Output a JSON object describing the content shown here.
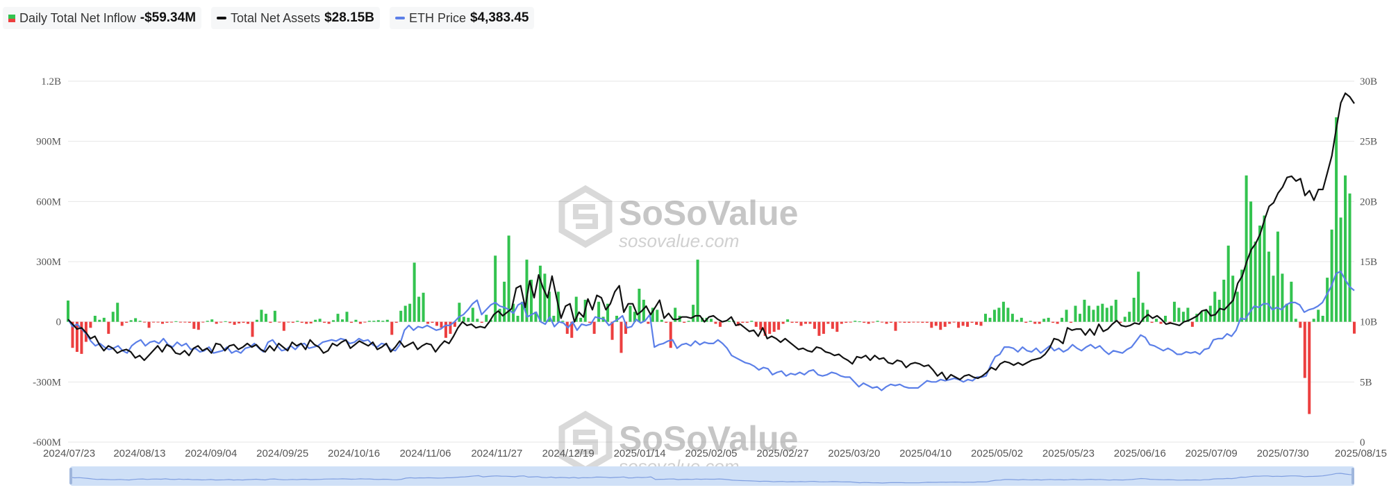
{
  "legend": {
    "inflow": {
      "label": "Daily Total Net Inflow",
      "value": "-$59.34M"
    },
    "assets": {
      "label": "Total Net Assets",
      "value": "$28.15B"
    },
    "price": {
      "label": "ETH Price",
      "value": "$4,383.45"
    }
  },
  "watermark": {
    "brand": "SoSoValue",
    "url": "sosovalue.com"
  },
  "colors": {
    "positive": "#33c34f",
    "negative": "#ec3f3f",
    "assets_line": "#111111",
    "price_line": "#5b7fe8",
    "grid": "#e6e6e6",
    "navigator": "#cfe0f7"
  },
  "chart_data": {
    "type": "bar",
    "title": "",
    "xlabel": "",
    "ylabel": "",
    "x_ticks": [
      "2024/07/23",
      "2024/08/13",
      "2024/09/04",
      "2024/09/25",
      "2024/10/16",
      "2024/11/06",
      "2024/11/27",
      "2024/12/19",
      "2025/01/14",
      "2025/02/05",
      "2025/02/27",
      "2025/03/20",
      "2025/04/10",
      "2025/05/02",
      "2025/05/23",
      "2025/06/16",
      "2025/07/09",
      "2025/07/30",
      "2025/08/15"
    ],
    "y_left_ticks": [
      "1.2B",
      "900M",
      "600M",
      "300M",
      "0",
      "-300M",
      "-600M"
    ],
    "y_right_ticks": [
      "30B",
      "25B",
      "20B",
      "15B",
      "10B",
      "5B",
      "0"
    ],
    "ylim_left": [
      -600,
      1200
    ],
    "ylim_right": [
      0,
      30
    ],
    "left_unit": "M USD",
    "right_unit": "B",
    "grid": true,
    "series": [
      {
        "name": "Daily Total Net Inflow",
        "type": "bar",
        "axis": "left",
        "values": [
          106,
          -130,
          -150,
          -160,
          -100,
          -30,
          30,
          10,
          20,
          -60,
          50,
          95,
          -20,
          -5,
          8,
          18,
          5,
          -3,
          -30,
          -2,
          -3,
          -10,
          -5,
          -3,
          3,
          -3,
          -2,
          -5,
          -35,
          -40,
          -3,
          5,
          12,
          -10,
          -3,
          3,
          -6,
          -15,
          -8,
          -5,
          -10,
          -75,
          10,
          60,
          40,
          -5,
          55,
          -3,
          -45,
          -3,
          -5,
          5,
          -5,
          -10,
          -8,
          10,
          15,
          -5,
          -10,
          8,
          40,
          12,
          50,
          -5,
          10,
          -10,
          -3,
          5,
          5,
          8,
          5,
          10,
          -65,
          -5,
          55,
          80,
          90,
          295,
          125,
          145,
          -10,
          -5,
          -20,
          -30,
          -80,
          -60,
          -25,
          95,
          25,
          20,
          70,
          15,
          -5,
          35,
          10,
          330,
          65,
          200,
          430,
          90,
          30,
          100,
          310,
          210,
          50,
          280,
          240,
          150,
          30,
          150,
          5,
          -60,
          -80,
          125,
          20,
          110,
          -5,
          -60,
          100,
          25,
          90,
          -90,
          30,
          -155,
          -60,
          80,
          50,
          165,
          110,
          -10,
          70,
          60,
          10,
          -5,
          -130,
          70,
          30,
          -5,
          5,
          85,
          310,
          20,
          20,
          15,
          -10,
          -25,
          5,
          5,
          5,
          -20,
          -5,
          -5,
          5,
          -25,
          -40,
          -70,
          -60,
          -50,
          -40,
          -10,
          12,
          -5,
          -5,
          -20,
          -10,
          -10,
          -35,
          -70,
          -60,
          -10,
          -35,
          -50,
          -10,
          -5,
          -3,
          5,
          2,
          -5,
          -10,
          -3,
          5,
          -3,
          -10,
          -5,
          -45,
          -3,
          -5,
          -5,
          -3,
          -3,
          -5,
          -5,
          -30,
          -20,
          -40,
          -25,
          -10,
          -3,
          -30,
          -20,
          -25,
          -5,
          -15,
          -20,
          40,
          20,
          60,
          70,
          100,
          70,
          40,
          10,
          20,
          -5,
          5,
          -10,
          -10,
          15,
          20,
          -5,
          -10,
          20,
          60,
          -5,
          80,
          40,
          110,
          80,
          60,
          80,
          90,
          70,
          80,
          110,
          -5,
          25,
          50,
          120,
          250,
          95,
          60,
          -5,
          15,
          -10,
          30,
          -10,
          100,
          70,
          50,
          70,
          -25,
          40,
          50,
          60,
          80,
          150,
          110,
          210,
          380,
          230,
          150,
          260,
          730,
          600,
          400,
          480,
          530,
          350,
          230,
          450,
          240,
          90,
          200,
          15,
          -30,
          -280,
          -460,
          15,
          60,
          30,
          220,
          460,
          1020,
          520,
          730,
          640,
          -59
        ]
      },
      {
        "name": "Total Net Assets",
        "type": "line",
        "axis": "right",
        "values": [
          10.2,
          9.8,
          9.4,
          9.5,
          9.1,
          8.6,
          8.8,
          8.1,
          7.6,
          8.0,
          7.8,
          7.4,
          7.6,
          7.7,
          7.5,
          7.0,
          7.2,
          6.8,
          7.2,
          7.6,
          8.0,
          7.5,
          8.1,
          7.9,
          7.4,
          7.3,
          7.6,
          7.2,
          7.8,
          8.0,
          7.6,
          7.8,
          7.4,
          8.2,
          8.1,
          7.6,
          8.0,
          8.1,
          7.7,
          7.9,
          8.2,
          7.9,
          8.1,
          7.7,
          7.5,
          8.0,
          7.6,
          8.2,
          7.9,
          7.6,
          8.3,
          8.0,
          8.2,
          7.7,
          8.5,
          8.1,
          7.9,
          7.4,
          7.6,
          8.2,
          8.0,
          8.3,
          8.5,
          7.8,
          8.1,
          8.4,
          8.2,
          8.0,
          8.3,
          7.7,
          7.9,
          8.2,
          7.5,
          7.9,
          8.4,
          7.9,
          8.1,
          8.3,
          7.7,
          8.0,
          8.2,
          8.1,
          7.5,
          8.0,
          8.4,
          8.2,
          8.8,
          9.5,
          10.0,
          9.7,
          9.8,
          9.5,
          9.6,
          9.5,
          10.0,
          10.6,
          10.9,
          10.5,
          10.8,
          11.1,
          12.8,
          13.0,
          11.2,
          13.4,
          12.0,
          13.9,
          12.8,
          12.0,
          13.8,
          12.0,
          10.3,
          11.3,
          11.5,
          10.0,
          10.8,
          10.4,
          11.9,
          11.0,
          12.2,
          12.0,
          11.0,
          11.5,
          12.5,
          13.0,
          10.8,
          11.5,
          11.5,
          10.6,
          10.9,
          11.3,
          10.6,
          11.2,
          11.8,
          10.3,
          10.7,
          10.2,
          10.2,
          10.4,
          10.4,
          10.3,
          10.5,
          10.5,
          10.0,
          10.4,
          10.5,
          10.2,
          10.0,
          10.1,
          10.4,
          9.7,
          9.8,
          9.5,
          9.2,
          9.3,
          8.8,
          9.5,
          8.6,
          8.8,
          8.6,
          8.3,
          8.6,
          8.3,
          8.0,
          7.7,
          7.8,
          7.6,
          7.5,
          7.9,
          7.8,
          7.5,
          7.4,
          7.2,
          7.3,
          7.0,
          6.8,
          6.5,
          7.1,
          7.0,
          7.2,
          6.8,
          7.2,
          6.9,
          7.0,
          6.6,
          6.5,
          6.8,
          6.7,
          6.2,
          6.5,
          6.6,
          6.5,
          6.3,
          6.4,
          6.0,
          5.5,
          5.8,
          5.2,
          5.6,
          5.4,
          5.2,
          5.5,
          5.6,
          5.4,
          5.3,
          5.5,
          5.8,
          6.2,
          6.0,
          6.5,
          6.7,
          6.6,
          6.4,
          6.6,
          6.4,
          6.6,
          6.8,
          6.9,
          7.0,
          7.3,
          7.8,
          8.6,
          8.5,
          8.2,
          9.5,
          9.3,
          9.4,
          9.4,
          8.9,
          9.4,
          8.9,
          9.8,
          9.2,
          9.4,
          9.8,
          10.1,
          9.7,
          9.6,
          9.7,
          9.9,
          9.8,
          10.3,
          10.6,
          10.3,
          10.5,
          10.2,
          9.8,
          9.9,
          9.8,
          9.7,
          10.0,
          10.1,
          10.3,
          10.5,
          10.9,
          11.0,
          10.5,
          10.6,
          11.1,
          11.0,
          11.4,
          11.8,
          13.2,
          13.8,
          15.0,
          16.0,
          16.5,
          17.3,
          18.5,
          19.6,
          19.9,
          20.7,
          21.2,
          22.0,
          22.1,
          21.7,
          21.9,
          20.5,
          20.9,
          20.1,
          21.0,
          21.0,
          22.4,
          23.8,
          26.1,
          28.2,
          29.0,
          28.7,
          28.15
        ]
      },
      {
        "name": "ETH Price",
        "type": "line",
        "axis": "right",
        "values": [
          10.2,
          9.6,
          9.8,
          9.4,
          9.0,
          8.4,
          8.0,
          8.2,
          7.9,
          7.7,
          7.8,
          8.0,
          7.6,
          7.4,
          8.0,
          8.3,
          8.5,
          8.0,
          8.3,
          8.4,
          8.2,
          8.6,
          8.1,
          7.9,
          8.3,
          8.0,
          8.2,
          7.7,
          7.8,
          7.5,
          7.6,
          7.9,
          7.4,
          7.5,
          7.6,
          7.9,
          7.4,
          7.6,
          7.4,
          7.8,
          7.9,
          8.2,
          7.8,
          7.5,
          8.3,
          8.5,
          8.0,
          7.6,
          7.7,
          8.0,
          7.7,
          8.1,
          8.2,
          7.8,
          7.9,
          8.0,
          8.3,
          8.4,
          8.5,
          8.4,
          8.6,
          8.5,
          8.2,
          8.3,
          8.6,
          8.4,
          8.5,
          8.1,
          7.9,
          8.2,
          8.1,
          7.7,
          7.6,
          8.1,
          9.3,
          9.7,
          9.3,
          9.6,
          9.5,
          9.7,
          9.5,
          9.3,
          9.4,
          9.7,
          9.7,
          10.0,
          10.4,
          10.6,
          11.0,
          11.5,
          11.8,
          10.6,
          11.0,
          11.4,
          11.6,
          11.3,
          11.2,
          11.0,
          10.7,
          11.4,
          11.6,
          10.4,
          10.6,
          10.8,
          10.0,
          9.8,
          10.4,
          9.6,
          10.0,
          9.9,
          9.5,
          10.0,
          9.3,
          9.8,
          9.7,
          9.8,
          10.4,
          10.3,
          10.2,
          9.7,
          10.0,
          10.2,
          10.5,
          9.5,
          9.6,
          10.2,
          9.9,
          10.1,
          10.6,
          7.9,
          8.1,
          8.2,
          8.4,
          8.5,
          7.8,
          8.1,
          8.2,
          8.0,
          8.4,
          8.1,
          8.3,
          8.2,
          8.2,
          8.5,
          8.2,
          7.8,
          7.2,
          7.0,
          6.8,
          6.6,
          6.5,
          6.3,
          6.0,
          6.2,
          6.1,
          5.6,
          5.8,
          5.9,
          5.5,
          5.7,
          5.6,
          5.8,
          5.6,
          5.9,
          6.0,
          5.6,
          5.5,
          5.6,
          5.8,
          5.7,
          5.5,
          5.4,
          5.4,
          5.0,
          4.6,
          4.9,
          4.7,
          4.5,
          4.6,
          4.3,
          4.6,
          4.8,
          4.7,
          4.8,
          4.6,
          4.5,
          4.5,
          4.5,
          4.8,
          5.1,
          5.0,
          5.0,
          5.2,
          5.1,
          5.2,
          5.3,
          5.2,
          5.0,
          5.2,
          5.1,
          5.4,
          5.4,
          5.5,
          6.4,
          7.1,
          7.3,
          7.9,
          7.9,
          7.8,
          7.5,
          7.9,
          7.6,
          7.5,
          7.8,
          7.4,
          7.7,
          8.0,
          7.6,
          7.8,
          7.5,
          7.7,
          8.1,
          7.8,
          7.6,
          7.9,
          8.1,
          7.8,
          8.0,
          7.6,
          7.3,
          7.6,
          7.5,
          7.4,
          7.7,
          7.9,
          8.4,
          8.9,
          8.7,
          8.1,
          8.0,
          7.8,
          7.6,
          7.8,
          7.6,
          7.3,
          7.3,
          7.5,
          7.4,
          7.5,
          7.3,
          7.7,
          7.8,
          8.5,
          8.6,
          8.6,
          9.0,
          8.8,
          9.3,
          10.3,
          10.2,
          10.8,
          11.3,
          11.2,
          11.5,
          11.5,
          11.0,
          11.2,
          11.0,
          11.4,
          11.6,
          11.6,
          11.4,
          10.8,
          11.0,
          11.1,
          11.3,
          11.6,
          12.3,
          13.0,
          14.0,
          14.2,
          13.5,
          12.9,
          12.6
        ]
      }
    ]
  }
}
